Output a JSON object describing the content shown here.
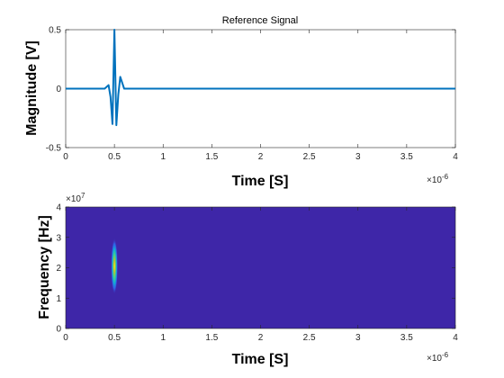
{
  "chart_data": [
    {
      "type": "line",
      "title": "Reference Signal",
      "xlabel": "Time [S]",
      "ylabel": "Magnitude [V]",
      "xlim": [
        0,
        4e-06
      ],
      "ylim": [
        -0.5,
        0.5
      ],
      "x_tick_labels": [
        "0",
        "0.5",
        "1",
        "1.5",
        "2",
        "2.5",
        "3",
        "3.5",
        "4"
      ],
      "y_tick_labels": [
        "-0.5",
        "0",
        "0.5"
      ],
      "x_exponent_label": "×10",
      "x_exponent_power": "-6",
      "series": [
        {
          "color": "#0072BD",
          "x": [
            0,
            4e-07,
            4.4e-07,
            4.6e-07,
            4.8e-07,
            5e-07,
            5.2e-07,
            5.4e-07,
            5.6e-07,
            6e-07,
            4e-06
          ],
          "y": [
            0,
            0,
            0.03,
            -0.07,
            -0.3,
            0.5,
            -0.31,
            -0.05,
            0.1,
            0,
            0
          ]
        }
      ],
      "grid": false
    },
    {
      "type": "heatmap",
      "title": "",
      "xlabel": "Time [S]",
      "ylabel": "Frequency [Hz]",
      "xlim": [
        0,
        4e-06
      ],
      "ylim": [
        0,
        40000000.0
      ],
      "x_tick_labels": [
        "0",
        "0.5",
        "1",
        "1.5",
        "2",
        "2.5",
        "3",
        "3.5",
        "4"
      ],
      "y_tick_labels": [
        "0",
        "1",
        "2",
        "3",
        "4"
      ],
      "x_exponent_label": "×10",
      "x_exponent_power": "-6",
      "y_exponent_label": "×10",
      "y_exponent_power": "7",
      "background_color": "#3E26A8",
      "blob": {
        "center_time": 5e-07,
        "center_freq": 20500000.0,
        "time_spread": 3.5e-08,
        "freq_spread": 6000000.0
      },
      "colormap": [
        "#3E26A8",
        "#2E6EF7",
        "#0FB0D0",
        "#47CC8F",
        "#BEBF2A",
        "#F9FB15"
      ]
    }
  ]
}
